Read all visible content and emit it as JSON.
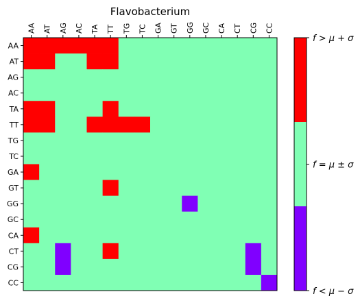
{
  "chart_data": {
    "type": "heatmap",
    "title": "Flavobacterium",
    "x_labels": [
      "AA",
      "AT",
      "AG",
      "AC",
      "TA",
      "TT",
      "TG",
      "TC",
      "GA",
      "GT",
      "GG",
      "GC",
      "CA",
      "CT",
      "CG",
      "CC"
    ],
    "y_labels": [
      "AA",
      "AT",
      "AG",
      "AC",
      "TA",
      "TT",
      "TG",
      "TC",
      "GA",
      "GT",
      "GG",
      "GC",
      "CA",
      "CT",
      "CG",
      "CC"
    ],
    "values": [
      [
        1,
        1,
        1,
        1,
        1,
        1,
        0,
        0,
        0,
        0,
        0,
        0,
        0,
        0,
        0,
        0
      ],
      [
        1,
        1,
        0,
        0,
        1,
        1,
        0,
        0,
        0,
        0,
        0,
        0,
        0,
        0,
        0,
        0
      ],
      [
        0,
        0,
        0,
        0,
        0,
        0,
        0,
        0,
        0,
        0,
        0,
        0,
        0,
        0,
        0,
        0
      ],
      [
        0,
        0,
        0,
        0,
        0,
        0,
        0,
        0,
        0,
        0,
        0,
        0,
        0,
        0,
        0,
        0
      ],
      [
        1,
        1,
        0,
        0,
        0,
        1,
        0,
        0,
        0,
        0,
        0,
        0,
        0,
        0,
        0,
        0
      ],
      [
        1,
        1,
        0,
        0,
        1,
        1,
        1,
        1,
        0,
        0,
        0,
        0,
        0,
        0,
        0,
        0
      ],
      [
        0,
        0,
        0,
        0,
        0,
        0,
        0,
        0,
        0,
        0,
        0,
        0,
        0,
        0,
        0,
        0
      ],
      [
        0,
        0,
        0,
        0,
        0,
        0,
        0,
        0,
        0,
        0,
        0,
        0,
        0,
        0,
        0,
        0
      ],
      [
        1,
        0,
        0,
        0,
        0,
        0,
        0,
        0,
        0,
        0,
        0,
        0,
        0,
        0,
        0,
        0
      ],
      [
        0,
        0,
        0,
        0,
        0,
        1,
        0,
        0,
        0,
        0,
        0,
        0,
        0,
        0,
        0,
        0
      ],
      [
        0,
        0,
        0,
        0,
        0,
        0,
        0,
        0,
        0,
        0,
        -1,
        0,
        0,
        0,
        0,
        0
      ],
      [
        0,
        0,
        0,
        0,
        0,
        0,
        0,
        0,
        0,
        0,
        0,
        0,
        0,
        0,
        0,
        0
      ],
      [
        1,
        0,
        0,
        0,
        0,
        0,
        0,
        0,
        0,
        0,
        0,
        0,
        0,
        0,
        0,
        0
      ],
      [
        0,
        0,
        -1,
        0,
        0,
        1,
        0,
        0,
        0,
        0,
        0,
        0,
        0,
        0,
        -1,
        0
      ],
      [
        0,
        0,
        -1,
        0,
        0,
        0,
        0,
        0,
        0,
        0,
        0,
        0,
        0,
        0,
        -1,
        0
      ],
      [
        0,
        0,
        0,
        0,
        0,
        0,
        0,
        0,
        0,
        0,
        0,
        0,
        0,
        0,
        0,
        -1
      ]
    ],
    "categories": [
      {
        "value": 1,
        "label": "f > μ + σ",
        "color": "#ff0000"
      },
      {
        "value": 0,
        "label": "f = μ ± σ",
        "color": "#80ffb4"
      },
      {
        "value": -1,
        "label": "f < μ − σ",
        "color": "#8000ff"
      }
    ],
    "x_ticks_position": "top",
    "grid": false,
    "colorbar_placement": "right"
  }
}
